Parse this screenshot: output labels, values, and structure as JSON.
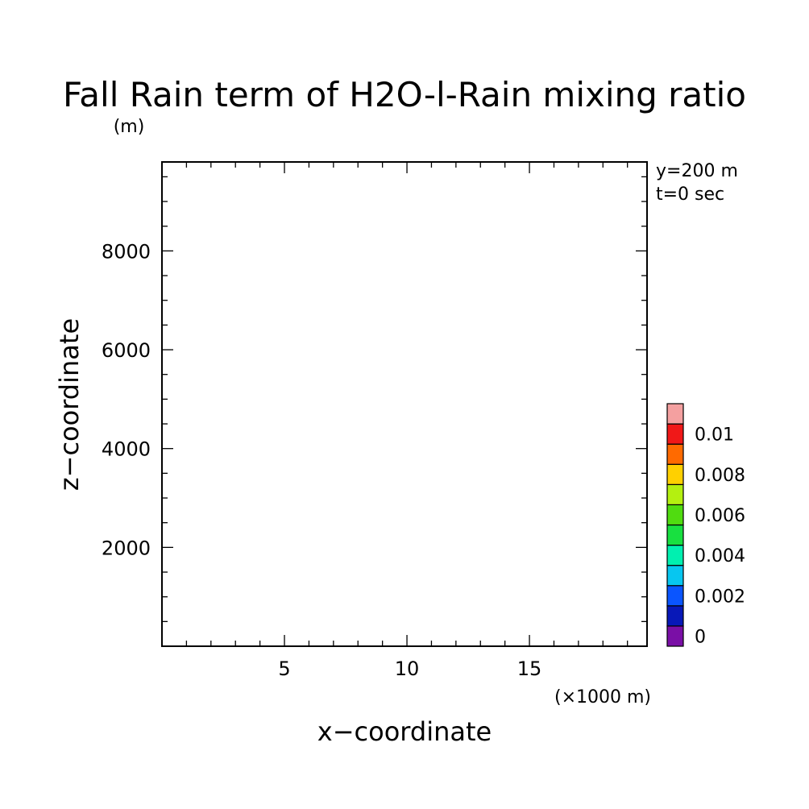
{
  "chart_data": {
    "type": "heatmap",
    "title": "Fall Rain term of H2O-l-Rain mixing ratio",
    "z_unit_label": "(m)",
    "xlabel": "x−coordinate",
    "ylabel": "z−coordinate",
    "x_scale_label": "(×1000 m)",
    "annotations": [
      "y=200 m",
      "t=0 sec"
    ],
    "xlim": [
      0,
      19.8
    ],
    "ylim": [
      0,
      9800
    ],
    "x_major_ticks": [
      5,
      10,
      15
    ],
    "x_tick_labels": [
      "5",
      "10",
      "15"
    ],
    "x_minor_step": 1,
    "y_major_ticks": [
      2000,
      4000,
      6000,
      8000
    ],
    "y_tick_labels": [
      "2000",
      "4000",
      "6000",
      "8000"
    ],
    "y_minor_step": 500,
    "field_values": [],
    "colorbar": {
      "levels": [
        0,
        0.001,
        0.002,
        0.003,
        0.004,
        0.005,
        0.006,
        0.007,
        0.008,
        0.009,
        0.01,
        0.011
      ],
      "tick_values": [
        0,
        0.002,
        0.004,
        0.006,
        0.008,
        0.01
      ],
      "tick_labels": [
        "0",
        "0.002",
        "0.004",
        "0.006",
        "0.008",
        "0.01"
      ],
      "colors": [
        "#7a0fa6",
        "#0818b8",
        "#0a55ff",
        "#07c6f0",
        "#00f0b0",
        "#18e040",
        "#50dc10",
        "#b4f010",
        "#ffd000",
        "#ff6a00",
        "#f01818",
        "#f4a0a0"
      ]
    }
  }
}
